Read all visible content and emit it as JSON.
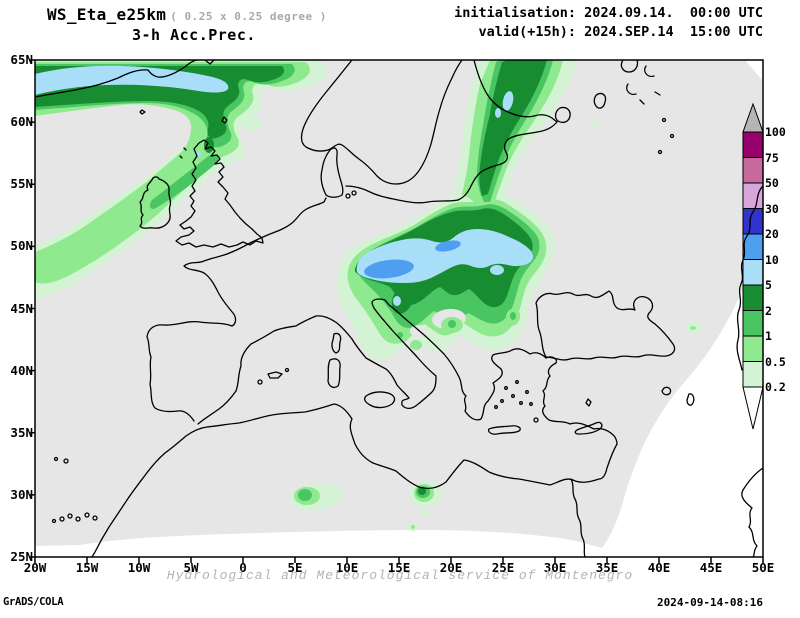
{
  "header": {
    "model": "WS_Eta_e25km",
    "resolution": "( 0.25 x 0.25 degree )",
    "product": "3-h Acc.Prec.",
    "init_line": "initialisation: 2024.09.14.  00:00 UTC",
    "valid_line": "valid(+15h): 2024.SEP.14  15:00 UTC"
  },
  "footer": {
    "engine": "GrADS/COLA",
    "created": "2024-09-14-08:16",
    "watermark": "Hydrological and Meteorological service of Montenegro"
  },
  "map": {
    "x_ticks": [
      "20W",
      "15W",
      "10W",
      "5W",
      "0",
      "5E",
      "10E",
      "15E",
      "20E",
      "25E",
      "30E",
      "35E",
      "40E",
      "45E",
      "50E"
    ],
    "y_ticks": [
      "65N",
      "60N",
      "55N",
      "50N",
      "45N",
      "40N",
      "35N",
      "30N",
      "25N"
    ]
  },
  "legend": {
    "boundary_labels": [
      "100",
      "75",
      "50",
      "30",
      "20",
      "10",
      "5",
      "2",
      "1",
      "0.5",
      "0.2"
    ],
    "segment_colors_top_down": [
      "#97016b",
      "#c96a9e",
      "#d7a7da",
      "#3233cf",
      "#4f9ff0",
      "#a8def8",
      "#178c30",
      "#49c562",
      "#8fe98f",
      "#d4f3d4"
    ],
    "over_arrow_color": "#b5b5b5",
    "under_arrow_color": "#ffffff"
  },
  "palette": {
    "domain": "#e6e6e6",
    "outside": "#ffffff",
    "coast": "#000000",
    "lvl02": "#d4f3d4",
    "lvl05": "#8fe98f",
    "lvl1": "#49c562",
    "lvl2": "#178c30",
    "lvl5": "#a8def8",
    "lvl10": "#4f9ff0"
  }
}
